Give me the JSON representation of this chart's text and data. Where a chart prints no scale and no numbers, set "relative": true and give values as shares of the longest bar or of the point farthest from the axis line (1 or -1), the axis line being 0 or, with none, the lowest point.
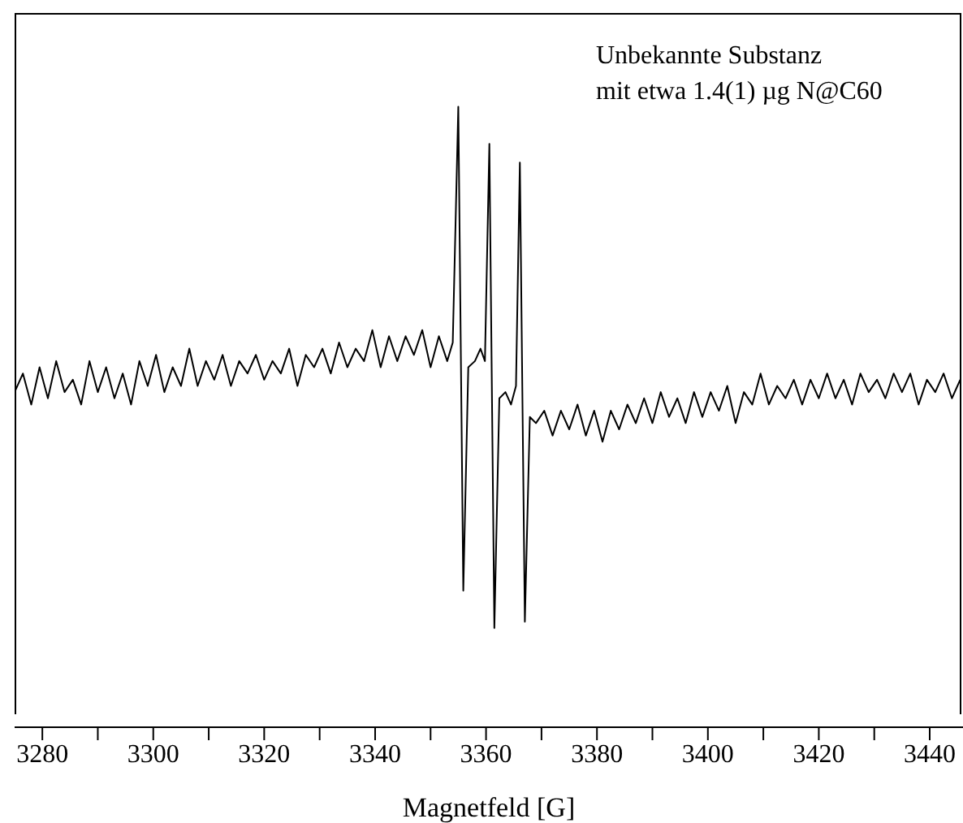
{
  "chart_data": {
    "type": "line",
    "xlabel": "Magnetfeld [G]",
    "annotations": [
      "Unbekannte Substanz\nmit etwa 1.4(1) µg N@C60"
    ],
    "relative": true,
    "marker": "none",
    "line_style": "solid",
    "grid": false,
    "legend": false,
    "xlim": [
      3275,
      3446
    ],
    "xticks": [
      3280,
      {
        "value": 3290,
        "label": null
      },
      3300,
      {
        "value": 3310,
        "label": null
      },
      3320,
      {
        "value": 3330,
        "label": null
      },
      3340,
      {
        "value": 3350,
        "label": null
      },
      3360,
      {
        "value": 3370,
        "label": null
      },
      3380,
      {
        "value": 3390,
        "label": null
      },
      3400,
      {
        "value": 3410,
        "label": null
      },
      3420,
      {
        "value": 3430,
        "label": null
      },
      3440
    ],
    "series": [
      {
        "color": "#000000",
        "x": [
          3275,
          3276.5,
          3278,
          3279.5,
          3281,
          3282.5,
          3284,
          3285.5,
          3287,
          3288.5,
          3290,
          3291.5,
          3293,
          3294.5,
          3296,
          3297.5,
          3299,
          3300.5,
          3302,
          3303.5,
          3305,
          3306.5,
          3308,
          3309.5,
          3311,
          3312.5,
          3314,
          3315.5,
          3317,
          3318.5,
          3320,
          3321.5,
          3323,
          3324.5,
          3326,
          3327.5,
          3329,
          3330.5,
          3332,
          3333.5,
          3335,
          3336.5,
          3338,
          3339.5,
          3341,
          3342.5,
          3344,
          3345.5,
          3347,
          3348.5,
          3350,
          3351.5,
          3353,
          3354,
          3355,
          3355.9,
          3356.8,
          3358,
          3359,
          3359.8,
          3360.6,
          3361.5,
          3362.4,
          3363.5,
          3364.5,
          3365.4,
          3366.1,
          3367,
          3367.9,
          3369,
          3370.5,
          3372,
          3373.5,
          3375,
          3376.5,
          3378,
          3379.5,
          3381,
          3382.5,
          3384,
          3385.5,
          3387,
          3388.5,
          3390,
          3391.5,
          3393,
          3394.5,
          3396,
          3397.5,
          3399,
          3400.5,
          3402,
          3403.5,
          3405,
          3406.5,
          3408,
          3409.5,
          3411,
          3412.5,
          3414,
          3415.5,
          3417,
          3418.5,
          3420,
          3421.5,
          3423,
          3424.5,
          3426,
          3427.5,
          3429,
          3430.5,
          3432,
          3433.5,
          3435,
          3436.5,
          3438,
          3439.5,
          3441,
          3442.5,
          3444,
          3445.5
        ],
        "values": [
          0.54,
          0.57,
          0.52,
          0.58,
          0.53,
          0.59,
          0.54,
          0.56,
          0.52,
          0.59,
          0.54,
          0.58,
          0.53,
          0.57,
          0.52,
          0.59,
          0.55,
          0.6,
          0.54,
          0.58,
          0.55,
          0.61,
          0.55,
          0.59,
          0.56,
          0.6,
          0.55,
          0.59,
          0.57,
          0.6,
          0.56,
          0.59,
          0.57,
          0.61,
          0.55,
          0.6,
          0.58,
          0.61,
          0.57,
          0.62,
          0.58,
          0.61,
          0.59,
          0.64,
          0.58,
          0.63,
          0.59,
          0.63,
          0.6,
          0.64,
          0.58,
          0.63,
          0.59,
          0.62,
          1,
          0.22,
          0.58,
          0.59,
          0.61,
          0.59,
          0.94,
          0.16,
          0.53,
          0.54,
          0.52,
          0.55,
          0.91,
          0.17,
          0.5,
          0.49,
          0.51,
          0.47,
          0.51,
          0.48,
          0.52,
          0.47,
          0.51,
          0.46,
          0.51,
          0.48,
          0.52,
          0.49,
          0.53,
          0.49,
          0.54,
          0.5,
          0.53,
          0.49,
          0.54,
          0.5,
          0.54,
          0.51,
          0.55,
          0.49,
          0.54,
          0.52,
          0.57,
          0.52,
          0.55,
          0.53,
          0.56,
          0.52,
          0.56,
          0.53,
          0.57,
          0.53,
          0.56,
          0.52,
          0.57,
          0.54,
          0.56,
          0.53,
          0.57,
          0.54,
          0.57,
          0.52,
          0.56,
          0.54,
          0.57,
          0.53,
          0.56
        ]
      }
    ]
  }
}
